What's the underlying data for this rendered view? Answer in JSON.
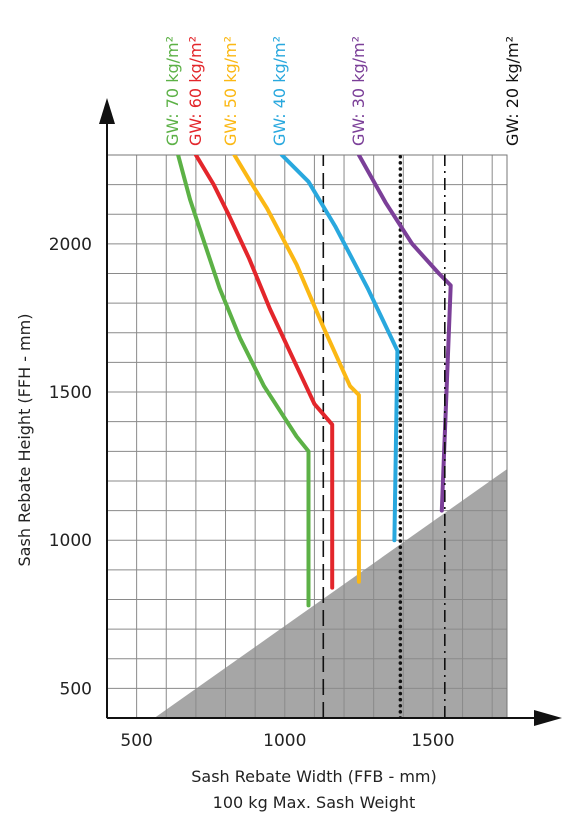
{
  "chart_data": {
    "type": "line",
    "xlabel": "Sash Rebate Width (FFB - mm)",
    "xlabel_sub": "100 kg Max. Sash Weight",
    "ylabel": "Sash Rebate Height (FFH - mm)",
    "xlim": [
      400,
      1750
    ],
    "ylim": [
      400,
      2300
    ],
    "x_ticks": [
      500,
      1000,
      1500
    ],
    "y_ticks": [
      500,
      1000,
      1500,
      2000
    ],
    "x_tick_labels": [
      "500",
      "1000",
      "1500"
    ],
    "y_tick_labels": [
      "500",
      "1000",
      "1500",
      "2000"
    ],
    "grid": true,
    "grid_step_x": 100,
    "grid_step_y": 100,
    "series": [
      {
        "name": "GW: 70 kg/m²",
        "color": "#5cb146",
        "style": "solid",
        "points": [
          [
            1080,
            780
          ],
          [
            1080,
            1300
          ],
          [
            1040,
            1350
          ],
          [
            930,
            1520
          ],
          [
            850,
            1680
          ],
          [
            780,
            1850
          ],
          [
            720,
            2030
          ],
          [
            680,
            2150
          ],
          [
            640,
            2300
          ]
        ]
      },
      {
        "name": "GW: 60 kg/m²",
        "color": "#e3262b",
        "style": "solid",
        "points": [
          [
            1160,
            840
          ],
          [
            1160,
            1390
          ],
          [
            1100,
            1460
          ],
          [
            1020,
            1630
          ],
          [
            950,
            1780
          ],
          [
            880,
            1950
          ],
          [
            810,
            2100
          ],
          [
            760,
            2200
          ],
          [
            700,
            2300
          ]
        ]
      },
      {
        "name": "GW: 50 kg/m²",
        "color": "#fbb814",
        "style": "solid",
        "points": [
          [
            1250,
            860
          ],
          [
            1250,
            1490
          ],
          [
            1220,
            1520
          ],
          [
            1130,
            1720
          ],
          [
            1040,
            1930
          ],
          [
            940,
            2120
          ],
          [
            890,
            2200
          ],
          [
            830,
            2300
          ]
        ]
      },
      {
        "name": "GW: 40 kg/m²",
        "color": "#29a8de",
        "style": "solid",
        "points": [
          [
            1370,
            1000
          ],
          [
            1380,
            1640
          ],
          [
            1280,
            1850
          ],
          [
            1170,
            2060
          ],
          [
            1080,
            2210
          ],
          [
            990,
            2300
          ]
        ]
      },
      {
        "name": "GW: 30 kg/m²",
        "color": "#7b3f98",
        "style": "solid",
        "points": [
          [
            1530,
            1100
          ],
          [
            1560,
            1860
          ],
          [
            1520,
            1900
          ],
          [
            1430,
            2000
          ],
          [
            1340,
            2140
          ],
          [
            1250,
            2300
          ]
        ]
      },
      {
        "name": "GW: 20 kg/m²",
        "color": "#111111",
        "style": "dash-dot",
        "points": [
          [
            1540,
            400
          ],
          [
            1540,
            2300
          ]
        ]
      }
    ],
    "extra_lines": [
      {
        "x": 1130,
        "color": "#111111",
        "style": "dashed"
      },
      {
        "x": 1390,
        "color": "#111111",
        "style": "dotted"
      }
    ],
    "shaded_region": {
      "color": "#a6a6a6",
      "points": [
        [
          560,
          400
        ],
        [
          1750,
          1240
        ],
        [
          1750,
          400
        ]
      ]
    }
  }
}
